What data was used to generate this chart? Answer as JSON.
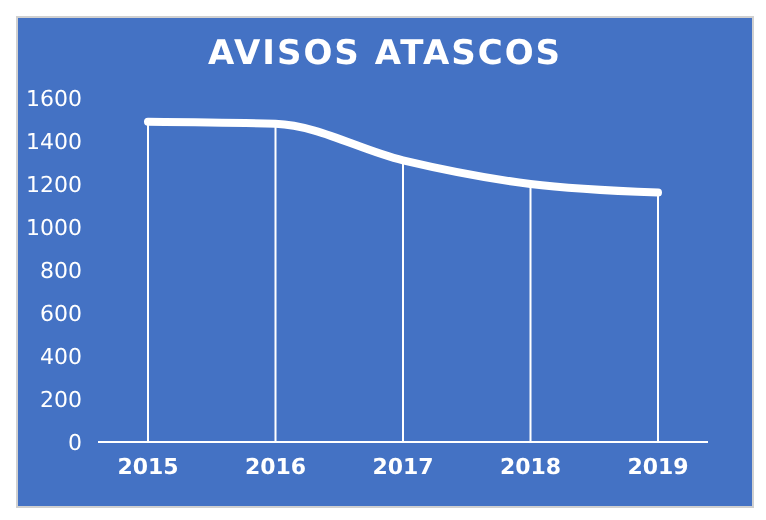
{
  "chart_data": {
    "type": "line",
    "title": "AVISOS ATASCOS",
    "categories": [
      "2015",
      "2016",
      "2017",
      "2018",
      "2019"
    ],
    "series": [
      {
        "color": "#ffffff",
        "values": [
          1490,
          1480,
          1310,
          1200,
          1160
        ]
      }
    ],
    "ylim": [
      0,
      1600
    ],
    "yticks": [
      0,
      200,
      400,
      600,
      800,
      1000,
      1200,
      1400,
      1600
    ],
    "grid": "x",
    "legend": false,
    "marker": "none",
    "line_style": "solid"
  }
}
